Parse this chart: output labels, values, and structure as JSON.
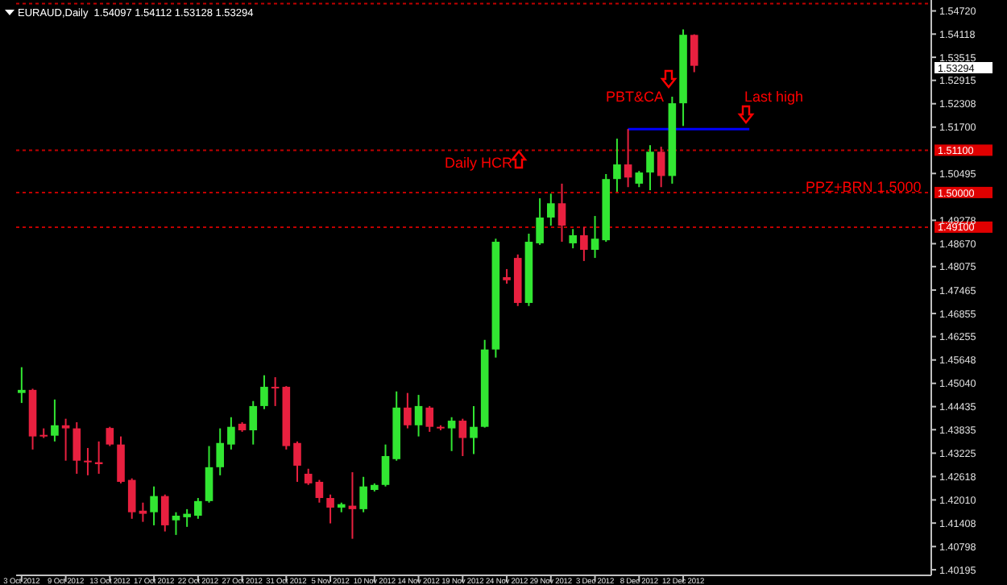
{
  "chart_data": {
    "type": "candlestick",
    "title": "EURAUD,Daily  1.54097 1.54112 1.53128 1.53294",
    "categories": [
      "3 Oct 2012",
      null,
      null,
      null,
      "9 Oct 2012",
      null,
      null,
      null,
      "13 Oct 2012",
      null,
      null,
      null,
      "17 Oct 2012",
      null,
      null,
      null,
      "22 Oct 2012",
      null,
      null,
      null,
      "27 Oct 2012",
      null,
      null,
      null,
      "31 Oct 2012",
      null,
      null,
      null,
      "5 Nov 2012",
      null,
      null,
      null,
      "10 Nov 2012",
      null,
      null,
      null,
      "14 Nov 2012",
      null,
      null,
      null,
      "19 Nov 2012",
      null,
      null,
      null,
      "24 Nov 2012",
      null,
      null,
      null,
      "29 Nov 2012",
      null,
      null,
      null,
      "3 Dec 2012",
      null,
      null,
      null,
      "8 Dec 2012",
      null,
      null,
      null,
      "12 Dec 2012",
      null,
      null,
      null,
      null,
      null,
      null,
      null,
      null,
      null,
      null,
      null,
      null,
      null,
      null,
      null,
      null,
      null,
      null,
      null,
      null,
      null,
      null
    ],
    "ohlc": [
      [
        1.4479,
        1.4546,
        1.4453,
        1.4487
      ],
      [
        1.4487,
        1.449,
        1.4332,
        1.4366
      ],
      [
        1.437,
        1.4387,
        1.4362,
        1.4366
      ],
      [
        1.4368,
        1.4462,
        1.4353,
        1.4395
      ],
      [
        1.4395,
        1.4412,
        1.4303,
        1.4387
      ],
      [
        1.4387,
        1.4403,
        1.4269,
        1.4303
      ],
      [
        1.4303,
        1.4336,
        1.4265,
        1.4301
      ],
      [
        1.4299,
        1.4353,
        1.4269,
        1.4294
      ],
      [
        1.4388,
        1.4391,
        1.4341,
        1.4345
      ],
      [
        1.4345,
        1.4366,
        1.4244,
        1.4248
      ],
      [
        1.4253,
        1.4257,
        1.4152,
        1.4169
      ],
      [
        1.4173,
        1.4194,
        1.4144,
        1.4165
      ],
      [
        1.4169,
        1.4236,
        1.4135,
        1.4211
      ],
      [
        1.4211,
        1.4215,
        1.4119,
        1.4135
      ],
      [
        1.4148,
        1.4169,
        1.411,
        1.416
      ],
      [
        1.4156,
        1.4177,
        1.4131,
        1.4165
      ],
      [
        1.416,
        1.4206,
        1.4152,
        1.4198
      ],
      [
        1.4198,
        1.4341,
        1.4194,
        1.4286
      ],
      [
        1.4286,
        1.4387,
        1.4265,
        1.4349
      ],
      [
        1.4345,
        1.4416,
        1.4332,
        1.4391
      ],
      [
        1.4399,
        1.4403,
        1.4378,
        1.4382
      ],
      [
        1.4382,
        1.4458,
        1.4345,
        1.4445
      ],
      [
        1.4445,
        1.4525,
        1.4437,
        1.4495
      ],
      [
        1.4495,
        1.452,
        1.4445,
        1.4491
      ],
      [
        1.4495,
        1.4497,
        1.4332,
        1.4341
      ],
      [
        1.4349,
        1.4353,
        1.4248,
        1.429
      ],
      [
        1.4269,
        1.4282,
        1.424,
        1.4244
      ],
      [
        1.4248,
        1.4253,
        1.4194,
        1.4206
      ],
      [
        1.4206,
        1.4215,
        1.414,
        1.4181
      ],
      [
        1.4181,
        1.4194,
        1.4169,
        1.419
      ],
      [
        1.4186,
        1.4273,
        1.41,
        1.4177
      ],
      [
        1.4177,
        1.4261,
        1.4169,
        1.4236
      ],
      [
        1.4227,
        1.4244,
        1.4223,
        1.424
      ],
      [
        1.424,
        1.4345,
        1.4236,
        1.4315
      ],
      [
        1.4307,
        1.4483,
        1.4303,
        1.4441
      ],
      [
        1.4441,
        1.4479,
        1.4387,
        1.4395
      ],
      [
        1.4395,
        1.4474,
        1.4366,
        1.4445
      ],
      [
        1.4441,
        1.4445,
        1.4378,
        1.4391
      ],
      [
        1.4391,
        1.4395,
        1.4382,
        1.4387
      ],
      [
        1.4387,
        1.4416,
        1.4328,
        1.4407
      ],
      [
        1.4407,
        1.4412,
        1.4315,
        1.4362
      ],
      [
        1.4362,
        1.4445,
        1.432,
        1.4391
      ],
      [
        1.4391,
        1.4617,
        1.4389,
        1.4592
      ],
      [
        1.4592,
        1.488,
        1.4571,
        1.4872
      ],
      [
        1.478,
        1.4801,
        1.4763,
        1.4772
      ],
      [
        1.483,
        1.4839,
        1.4705,
        1.4713
      ],
      [
        1.4713,
        1.4893,
        1.4705,
        1.4872
      ],
      [
        1.4868,
        1.4985,
        1.4864,
        1.4935
      ],
      [
        1.4935,
        1.4997,
        1.4914,
        1.4972
      ],
      [
        1.4972,
        1.5023,
        1.4872,
        1.4914
      ],
      [
        1.4868,
        1.4905,
        1.4855,
        1.4889
      ],
      [
        1.4889,
        1.491,
        1.4822,
        1.4851
      ],
      [
        1.4851,
        1.4939,
        1.483,
        1.488
      ],
      [
        1.4876,
        1.5048,
        1.4872,
        1.5035
      ],
      [
        1.5035,
        1.514,
        1.5002,
        1.5073
      ],
      [
        1.5073,
        1.5165,
        1.5014,
        1.5039
      ],
      [
        1.5023,
        1.5056,
        1.5014,
        1.5052
      ],
      [
        1.5052,
        1.5123,
        1.5006,
        1.5106
      ],
      [
        1.5106,
        1.5119,
        1.5014,
        1.5043
      ],
      [
        1.5043,
        1.5249,
        1.5023,
        1.5232
      ],
      [
        1.5232,
        1.5424,
        1.5173,
        1.541
      ],
      [
        1.54097,
        1.54112,
        1.53128,
        1.53294
      ],
      null,
      null,
      null,
      null,
      null,
      null,
      null,
      null,
      null,
      null,
      null,
      null,
      null,
      null,
      null,
      null,
      null,
      null,
      null,
      null,
      null
    ],
    "series": [
      {
        "type": "line",
        "color": "#0000ff",
        "values": [
          null,
          null,
          null,
          null,
          null,
          null,
          null,
          null,
          null,
          null,
          null,
          null,
          null,
          null,
          null,
          null,
          null,
          null,
          null,
          null,
          null,
          null,
          null,
          null,
          null,
          null,
          null,
          null,
          null,
          null,
          null,
          null,
          null,
          null,
          null,
          null,
          null,
          null,
          null,
          null,
          null,
          null,
          null,
          null,
          null,
          null,
          null,
          null,
          null,
          null,
          null,
          null,
          null,
          null,
          null,
          1.5165,
          1.5165,
          1.5165,
          1.5165,
          1.5165,
          1.5165,
          1.5165,
          1.5165,
          1.5165,
          1.5165,
          1.5165,
          1.5165,
          null,
          null,
          null,
          null,
          null,
          null,
          null,
          null,
          null,
          null,
          null,
          null,
          null,
          null,
          null,
          null
        ]
      }
    ],
    "ylim": [
      1.4005,
      1.5492
    ],
    "yticks": [
      1.40195,
      1.40798,
      1.41408,
      {
        "value": 1.4201,
        "label": "1.42010"
      },
      1.42618,
      1.43225,
      1.43835,
      1.44435,
      {
        "value": 1.4504,
        "label": "1.45040"
      },
      1.45648,
      1.46255,
      1.46855,
      1.47465,
      1.48075,
      {
        "value": 1.4867,
        "label": "1.48670"
      },
      1.49278,
      1.50495,
      {
        "value": 1.517,
        "label": "1.51700"
      },
      1.52308,
      1.52915,
      1.53515,
      1.54118,
      {
        "value": 1.5472,
        "label": "1.54720"
      }
    ],
    "ref_lines": [
      {
        "axis": "y",
        "value": 1.5491,
        "label": null,
        "color": "#c00000",
        "line_style": "dotted"
      },
      {
        "axis": "y",
        "value": 1.511,
        "label": "1.51100",
        "color": "#c00000",
        "line_style": "dotted"
      },
      {
        "axis": "y",
        "value": 1.5,
        "label": "1.50000",
        "color": "#c00000",
        "line_style": "dotted"
      },
      {
        "axis": "y",
        "value": 1.491,
        "label": "1.49100",
        "color": "#c00000",
        "line_style": "dotted"
      }
    ],
    "annotations": [
      "Daily HCR",
      "PBT&CA",
      "Last high",
      "PPZ+BRN 1.5000",
      "1.53294"
    ]
  }
}
